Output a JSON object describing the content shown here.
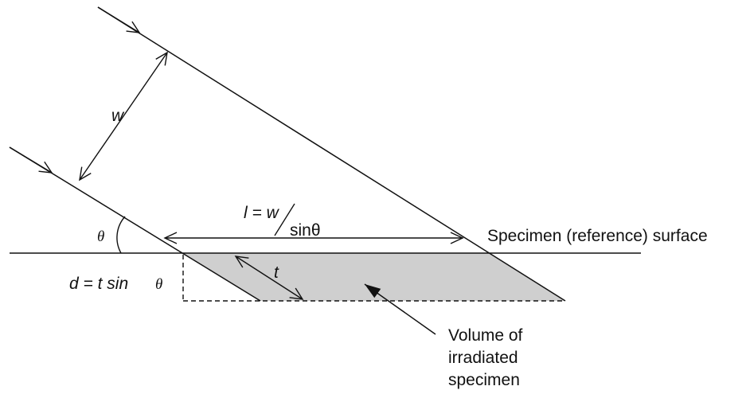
{
  "labels": {
    "w": "w",
    "theta": "θ",
    "l_prefix": "l = w",
    "l_denominator": "sinθ",
    "surface": "Specimen (reference) surface",
    "d_formula": "d = t sin",
    "d_theta": "θ",
    "t": "t",
    "volume": [
      "Volume of",
      "irradiated",
      "specimen"
    ]
  },
  "colors": {
    "line": "#111111",
    "shaded_region": "#cfcfcf"
  }
}
